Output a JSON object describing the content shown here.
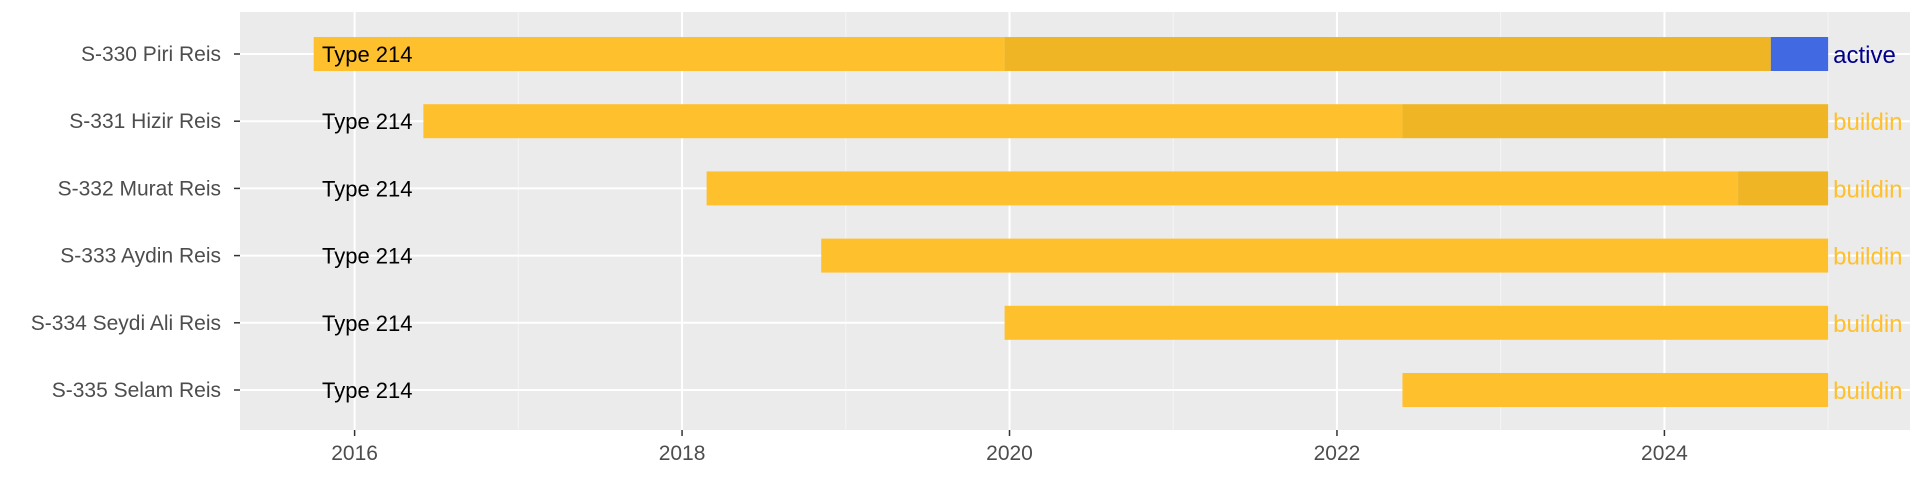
{
  "chart_data": {
    "type": "bar",
    "orientation": "horizontal",
    "title": "",
    "xlabel": "",
    "ylabel": "",
    "xlim": [
      2015.3,
      2025.5
    ],
    "x_ticks": [
      "2016",
      "2018",
      "2020",
      "2022",
      "2024"
    ],
    "grid": true,
    "legend": "none",
    "colors": {
      "panel": "#ebebeb",
      "grid_major": "#ffffff",
      "grid_minor": "#f5f5f5",
      "phase_1": "#ffc02e",
      "phase_2": "#efb525",
      "phase_active": "#4169e1",
      "status_active": "#00008b",
      "status_building": "#ffc02e"
    },
    "rows": [
      {
        "name": "S-330 Piri Reis",
        "bar_label": "Type 214",
        "status": "active",
        "segments": [
          {
            "start": 2015.75,
            "end": 2019.97,
            "phase": "phase_1"
          },
          {
            "start": 2019.97,
            "end": 2024.65,
            "phase": "phase_2"
          },
          {
            "start": 2024.65,
            "end": 2025.0,
            "phase": "phase_active"
          }
        ]
      },
      {
        "name": "S-331 Hizir Reis",
        "bar_label": "Type 214",
        "status": "buildin",
        "segments": [
          {
            "start": 2016.42,
            "end": 2022.4,
            "phase": "phase_1"
          },
          {
            "start": 2022.4,
            "end": 2025.0,
            "phase": "phase_2"
          }
        ]
      },
      {
        "name": "S-332 Murat Reis",
        "bar_label": "Type 214",
        "status": "buildin",
        "segments": [
          {
            "start": 2018.15,
            "end": 2024.45,
            "phase": "phase_1"
          },
          {
            "start": 2024.45,
            "end": 2025.0,
            "phase": "phase_2"
          }
        ]
      },
      {
        "name": "S-333 Aydin Reis",
        "bar_label": "Type 214",
        "status": "buildin",
        "segments": [
          {
            "start": 2018.85,
            "end": 2025.0,
            "phase": "phase_1"
          }
        ]
      },
      {
        "name": "S-334 Seydi Ali Reis",
        "bar_label": "Type 214",
        "status": "buildin",
        "segments": [
          {
            "start": 2019.97,
            "end": 2025.0,
            "phase": "phase_1"
          }
        ]
      },
      {
        "name": "S-335 Selam Reis",
        "bar_label": "Type 214",
        "status": "buildin",
        "segments": [
          {
            "start": 2022.4,
            "end": 2025.0,
            "phase": "phase_1"
          }
        ]
      }
    ]
  }
}
